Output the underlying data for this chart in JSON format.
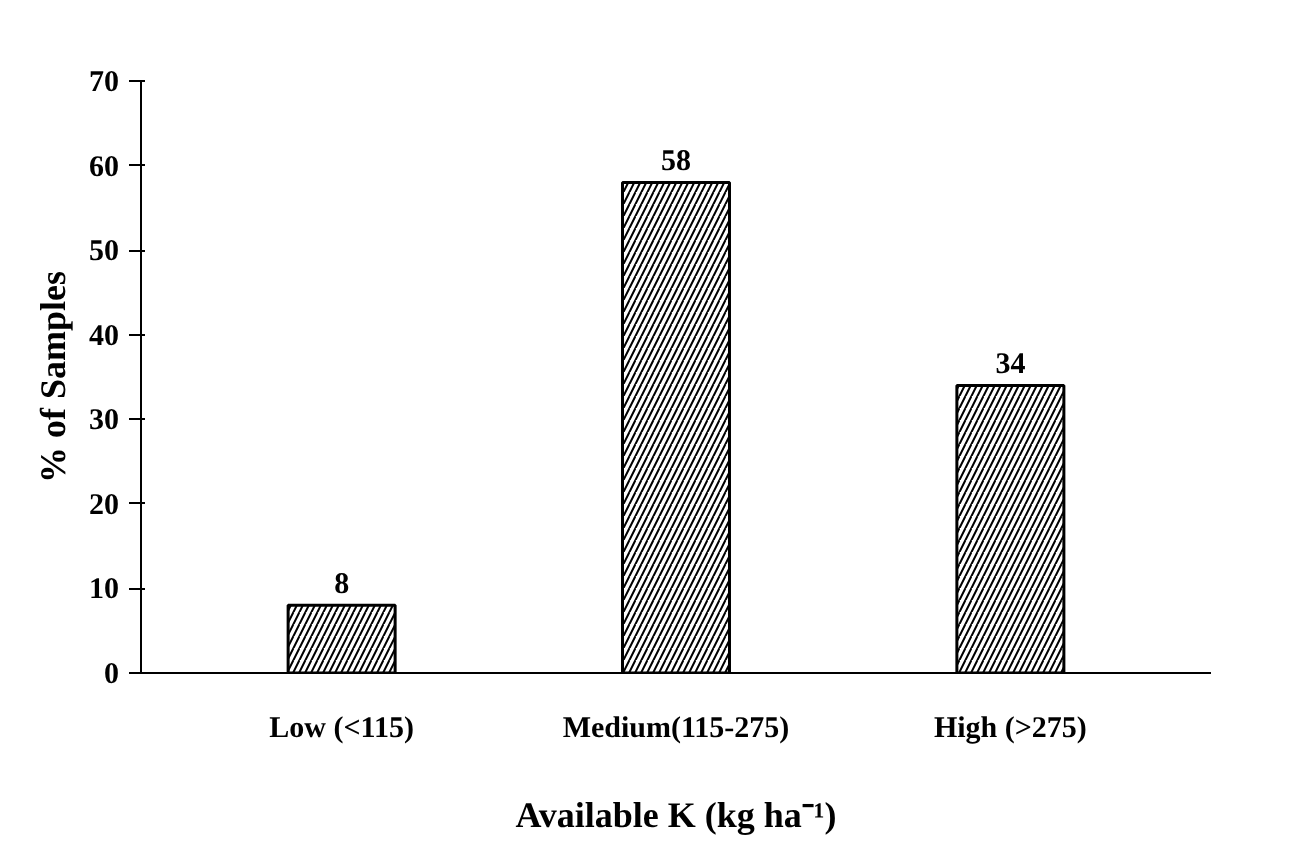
{
  "chart_data": {
    "type": "bar",
    "categories": [
      "Low (<115)",
      "Medium(115-275)",
      "High (>275)"
    ],
    "values": [
      8,
      58,
      34
    ],
    "color": "#000000",
    "xlabel": "Available K (kg ha⁻¹)",
    "ylabel": "% of Samples",
    "ylim": [
      0,
      70
    ],
    "yticks": [
      0,
      10,
      20,
      30,
      40,
      50,
      60,
      70
    ],
    "data_labels": true,
    "grid": false
  }
}
